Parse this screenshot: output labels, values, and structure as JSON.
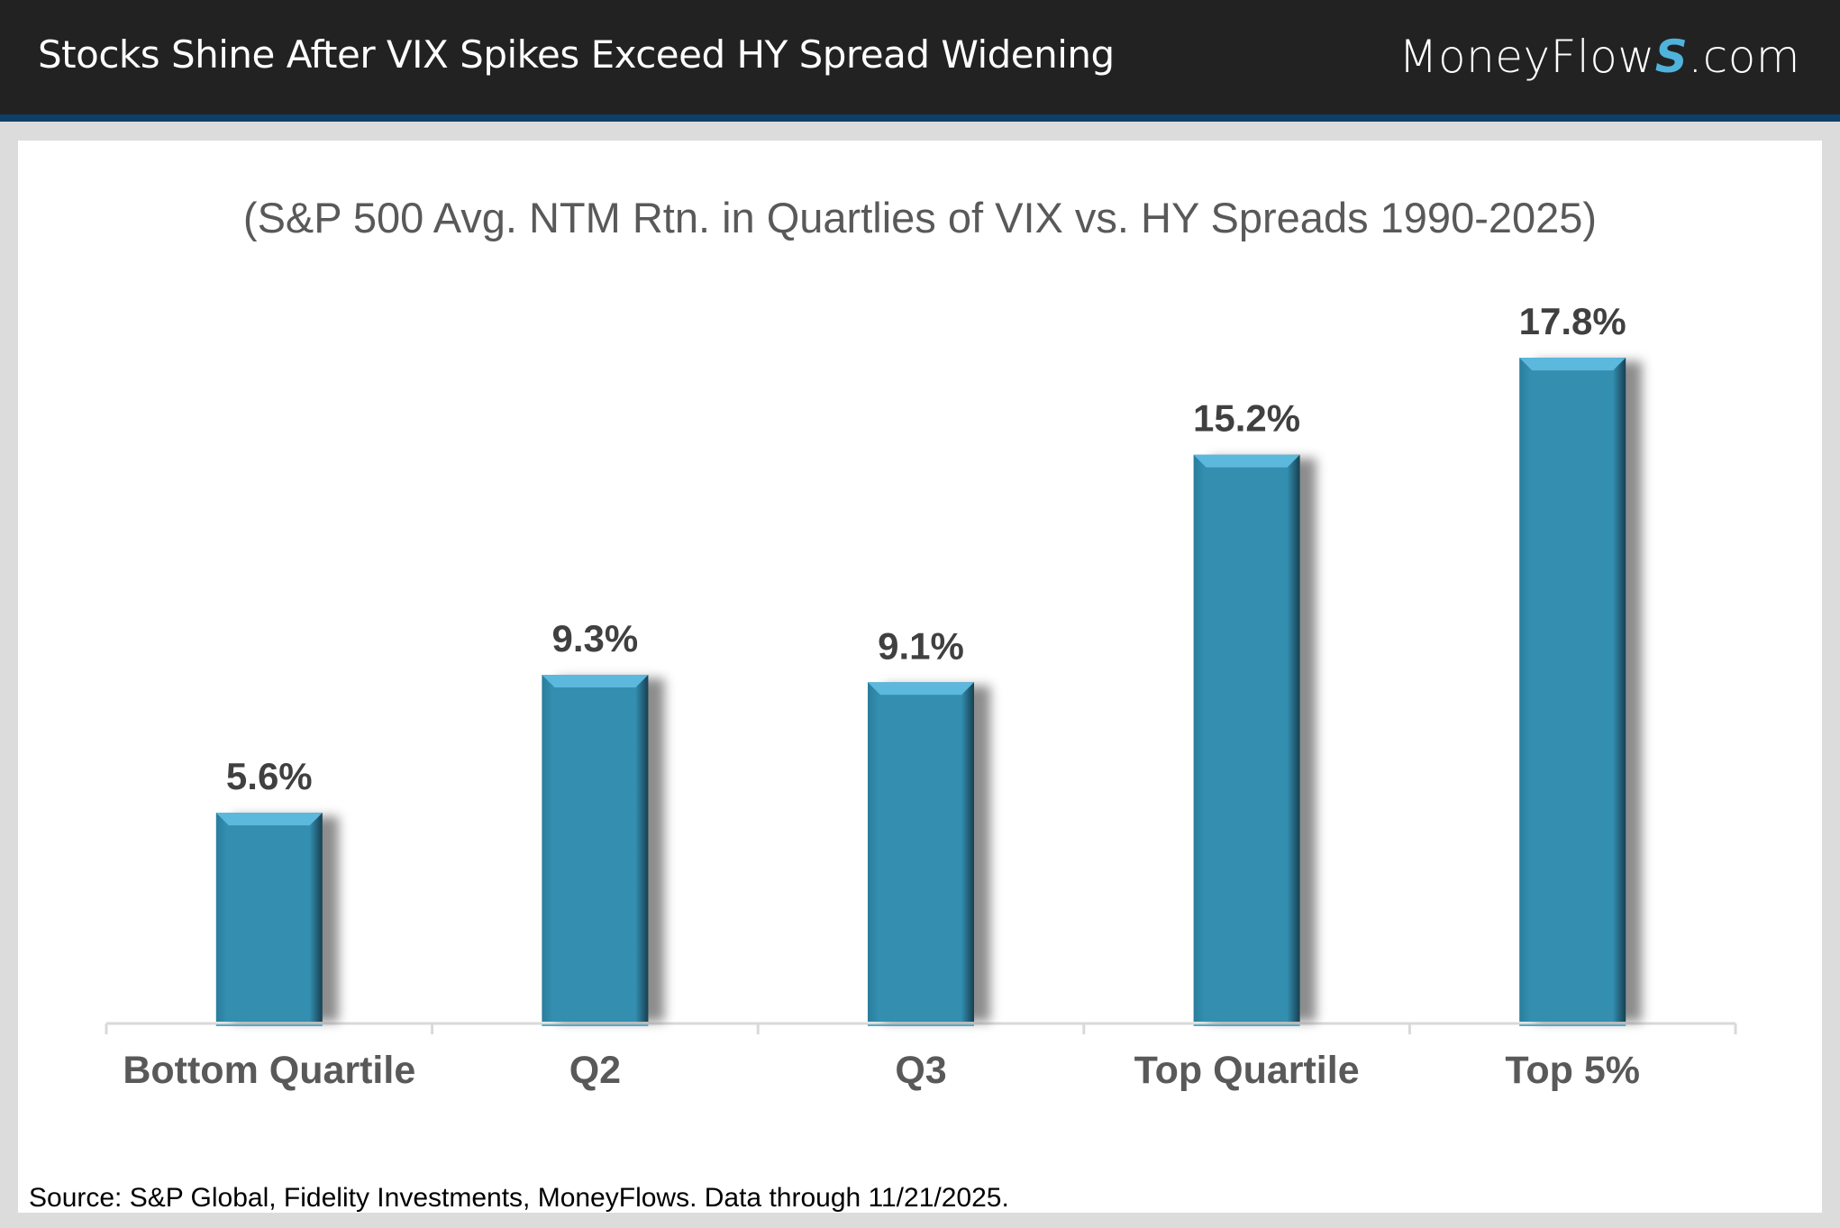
{
  "header": {
    "title": "Stocks Shine After VIX Spikes Exceed HY Spread Widening",
    "logo": "MoneyFlows.com",
    "logo_prefix": "MoneyFlow",
    "logo_s": "S",
    "logo_suffix": ".com"
  },
  "chart_data": {
    "type": "bar",
    "title": "(S&P 500 Avg. NTM Rtn. in Quartlies of VIX vs. HY Spreads 1990-2025)",
    "categories": [
      "Bottom Quartile",
      "Q2",
      "Q3",
      "Top Quartile",
      "Top 5%"
    ],
    "values": [
      5.6,
      9.3,
      9.1,
      15.2,
      17.8
    ],
    "data_labels": [
      "5.6%",
      "9.3%",
      "9.1%",
      "15.2%",
      "17.8%"
    ],
    "ylim": [
      0,
      20
    ],
    "grid": false,
    "bar_color": "#338eb0",
    "xlabel": "",
    "ylabel": ""
  },
  "footer": {
    "source": "Source: S&P Global, Fidelity Investments, MoneyFlows. Data through 11/21/2025."
  }
}
